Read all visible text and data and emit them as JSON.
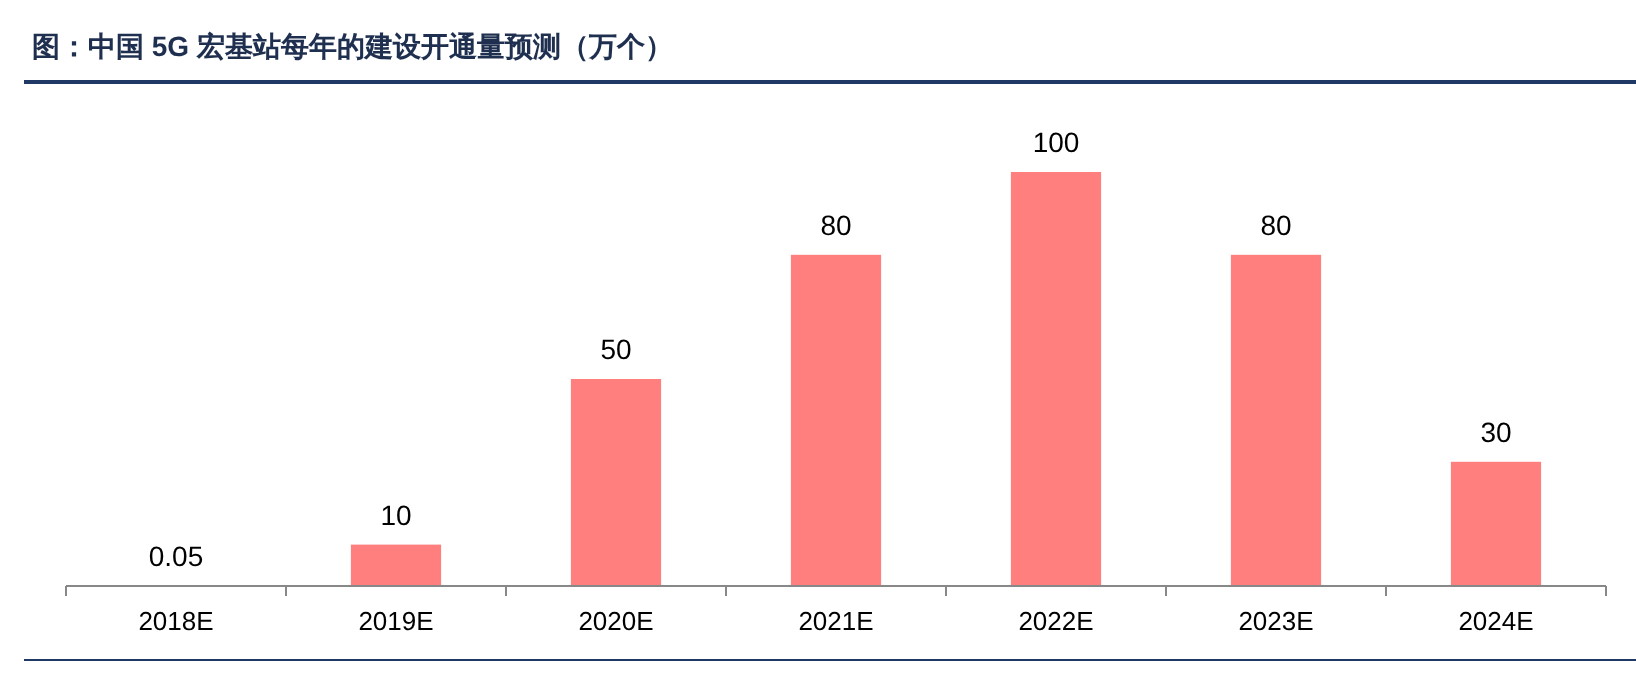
{
  "chart_data": {
    "type": "bar",
    "title": "图：中国 5G 宏基站每年的建设开通量预测（万个）",
    "categories": [
      "2018E",
      "2019E",
      "2020E",
      "2021E",
      "2022E",
      "2023E",
      "2024E"
    ],
    "values": [
      0.05,
      10,
      50,
      80,
      100,
      80,
      30
    ],
    "color": "#ff7f7f",
    "data_labels": true
  }
}
